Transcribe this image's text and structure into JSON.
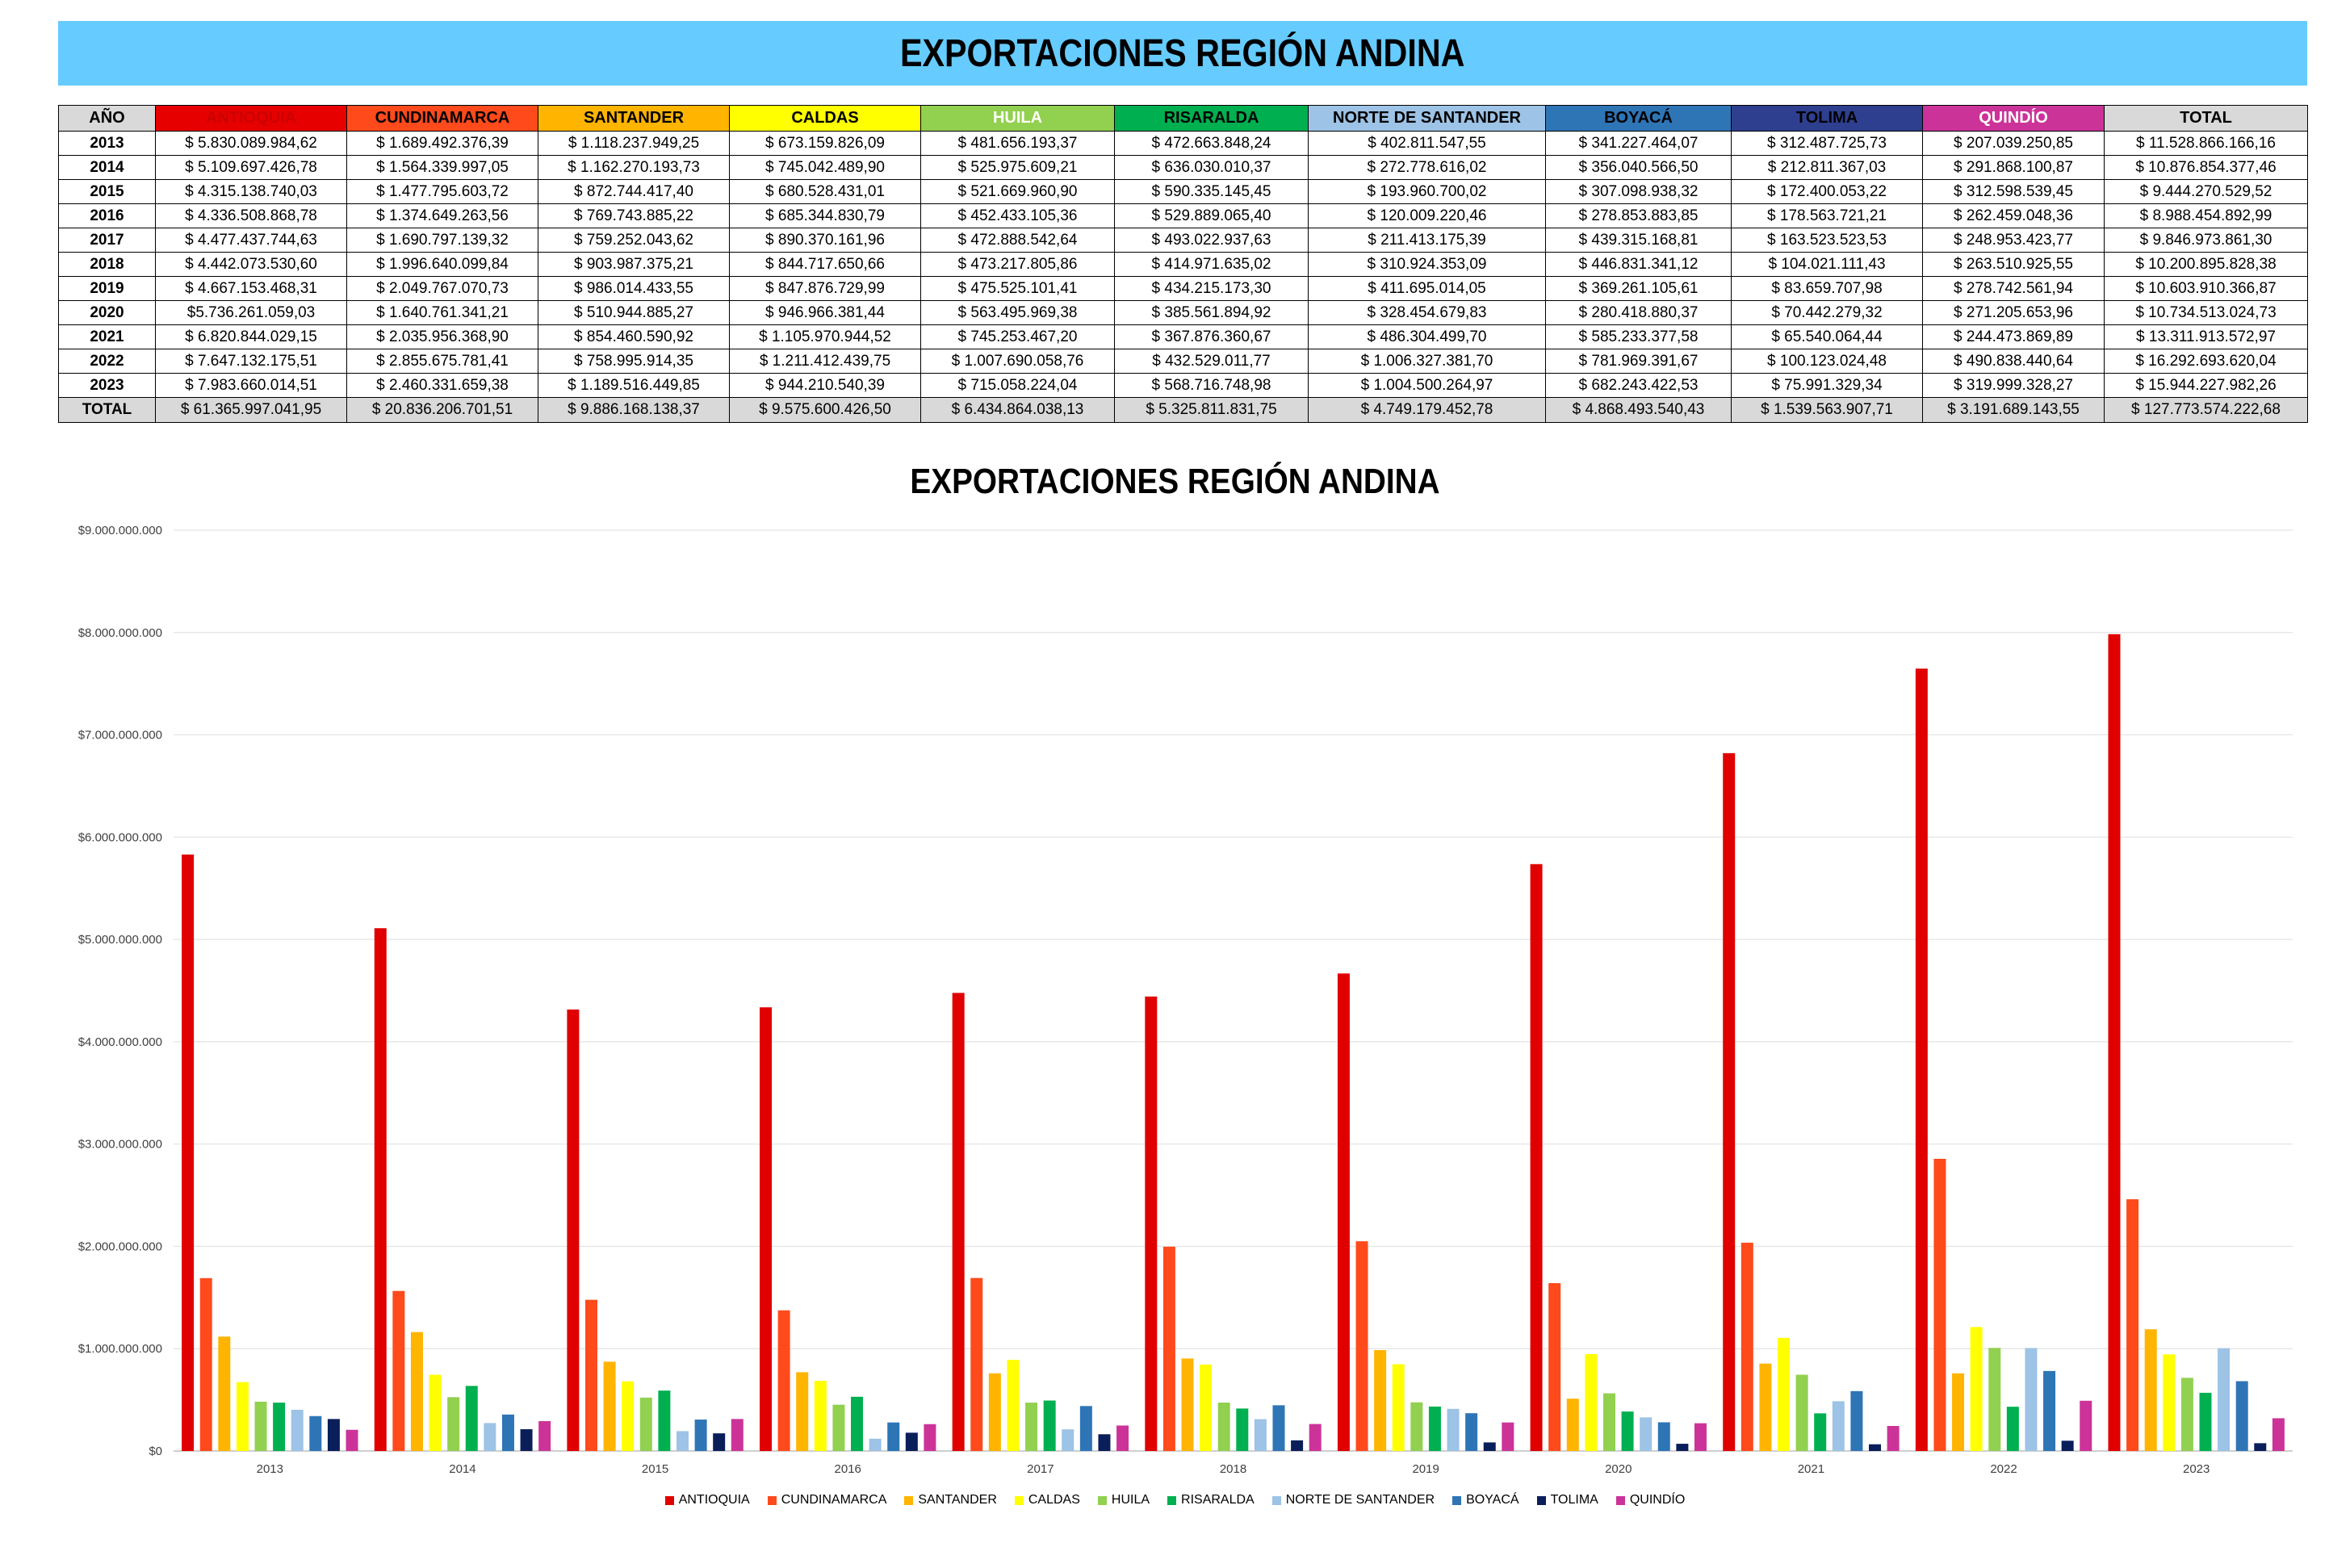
{
  "page_title": "EXPORTACIONES REGIÓN ANDINA",
  "table": {
    "year_header": "AÑO",
    "columns": [
      {
        "label": "ANTIOQUIA",
        "color": "#E60000",
        "text_color": "#CC0000"
      },
      {
        "label": "CUNDINAMARCA",
        "color": "#FF4A1C",
        "text_color": "#000000"
      },
      {
        "label": "SANTANDER",
        "color": "#FFB400",
        "text_color": "#000000"
      },
      {
        "label": "CALDAS",
        "color": "#FFFF00",
        "text_color": "#000000"
      },
      {
        "label": "HUILA",
        "color": "#92D050",
        "text_color": "#FFFFFF"
      },
      {
        "label": "RISARALDA",
        "color": "#00B050",
        "text_color": "#000000"
      },
      {
        "label": "NORTE DE SANTANDER",
        "color": "#9DC3E6",
        "text_color": "#000000"
      },
      {
        "label": "BOYACÁ",
        "color": "#2E75B6",
        "text_color": "#000000"
      },
      {
        "label": "TOLIMA",
        "color": "#2F3F8F",
        "text_color": "#000000"
      },
      {
        "label": "QUINDÍO",
        "color": "#CC3399",
        "text_color": "#FFFFFF"
      },
      {
        "label": "TOTAL",
        "color": "#D9D9D9",
        "text_color": "#000000"
      }
    ],
    "rows": [
      {
        "year": "2013",
        "cells": [
          "$ 5.830.089.984,62",
          "$ 1.689.492.376,39",
          "$ 1.118.237.949,25",
          "$ 673.159.826,09",
          "$ 481.656.193,37",
          "$ 472.663.848,24",
          "$ 402.811.547,55",
          "$ 341.227.464,07",
          "$ 312.487.725,73",
          "$ 207.039.250,85",
          "$ 11.528.866.166,16"
        ]
      },
      {
        "year": "2014",
        "cells": [
          "$ 5.109.697.426,78",
          "$ 1.564.339.997,05",
          "$ 1.162.270.193,73",
          "$ 745.042.489,90",
          "$ 525.975.609,21",
          "$ 636.030.010,37",
          "$ 272.778.616,02",
          "$ 356.040.566,50",
          "$ 212.811.367,03",
          "$ 291.868.100,87",
          "$ 10.876.854.377,46"
        ]
      },
      {
        "year": "2015",
        "cells": [
          "$ 4.315.138.740,03",
          "$ 1.477.795.603,72",
          "$ 872.744.417,40",
          "$ 680.528.431,01",
          "$ 521.669.960,90",
          "$ 590.335.145,45",
          "$ 193.960.700,02",
          "$ 307.098.938,32",
          "$ 172.400.053,22",
          "$ 312.598.539,45",
          "$ 9.444.270.529,52"
        ]
      },
      {
        "year": "2016",
        "cells": [
          "$ 4.336.508.868,78",
          "$ 1.374.649.263,56",
          "$ 769.743.885,22",
          "$ 685.344.830,79",
          "$ 452.433.105,36",
          "$ 529.889.065,40",
          "$ 120.009.220,46",
          "$ 278.853.883,85",
          "$ 178.563.721,21",
          "$ 262.459.048,36",
          "$ 8.988.454.892,99"
        ]
      },
      {
        "year": "2017",
        "cells": [
          "$ 4.477.437.744,63",
          "$ 1.690.797.139,32",
          "$ 759.252.043,62",
          "$ 890.370.161,96",
          "$ 472.888.542,64",
          "$ 493.022.937,63",
          "$ 211.413.175,39",
          "$ 439.315.168,81",
          "$ 163.523.523,53",
          "$ 248.953.423,77",
          "$ 9.846.973.861,30"
        ]
      },
      {
        "year": "2018",
        "cells": [
          "$ 4.442.073.530,60",
          "$ 1.996.640.099,84",
          "$ 903.987.375,21",
          "$ 844.717.650,66",
          "$ 473.217.805,86",
          "$ 414.971.635,02",
          "$ 310.924.353,09",
          "$ 446.831.341,12",
          "$ 104.021.111,43",
          "$ 263.510.925,55",
          "$ 10.200.895.828,38"
        ]
      },
      {
        "year": "2019",
        "cells": [
          "$ 4.667.153.468,31",
          "$ 2.049.767.070,73",
          "$ 986.014.433,55",
          "$ 847.876.729,99",
          "$ 475.525.101,41",
          "$ 434.215.173,30",
          "$ 411.695.014,05",
          "$ 369.261.105,61",
          "$ 83.659.707,98",
          "$ 278.742.561,94",
          "$ 10.603.910.366,87"
        ]
      },
      {
        "year": "2020",
        "cells": [
          "$5.736.261.059,03",
          "$ 1.640.761.341,21",
          "$ 510.944.885,27",
          "$ 946.966.381,44",
          "$ 563.495.969,38",
          "$ 385.561.894,92",
          "$ 328.454.679,83",
          "$ 280.418.880,37",
          "$ 70.442.279,32",
          "$ 271.205.653,96",
          "$ 10.734.513.024,73"
        ]
      },
      {
        "year": "2021",
        "cells": [
          "$ 6.820.844.029,15",
          "$ 2.035.956.368,90",
          "$ 854.460.590,92",
          "$ 1.105.970.944,52",
          "$ 745.253.467,20",
          "$ 367.876.360,67",
          "$ 486.304.499,70",
          "$ 585.233.377,58",
          "$ 65.540.064,44",
          "$ 244.473.869,89",
          "$ 13.311.913.572,97"
        ]
      },
      {
        "year": "2022",
        "cells": [
          "$ 7.647.132.175,51",
          "$ 2.855.675.781,41",
          "$ 758.995.914,35",
          "$ 1.211.412.439,75",
          "$ 1.007.690.058,76",
          "$ 432.529.011,77",
          "$ 1.006.327.381,70",
          "$ 781.969.391,67",
          "$ 100.123.024,48",
          "$ 490.838.440,64",
          "$ 16.292.693.620,04"
        ]
      },
      {
        "year": "2023",
        "cells": [
          "$ 7.983.660.014,51",
          "$ 2.460.331.659,38",
          "$ 1.189.516.449,85",
          "$ 944.210.540,39",
          "$ 715.058.224,04",
          "$ 568.716.748,98",
          "$ 1.004.500.264,97",
          "$ 682.243.422,53",
          "$ 75.991.329,34",
          "$ 319.999.328,27",
          "$ 15.944.227.982,26"
        ]
      }
    ],
    "total_row": {
      "year": "TOTAL",
      "cells": [
        "$ 61.365.997.041,95",
        "$ 20.836.206.701,51",
        "$ 9.886.168.138,37",
        "$ 9.575.600.426,50",
        "$ 6.434.864.038,13",
        "$ 5.325.811.831,75",
        "$ 4.749.179.452,78",
        "$ 4.868.493.540,43",
        "$ 1.539.563.907,71",
        "$ 3.191.689.143,55",
        "$ 127.773.574.222,68"
      ]
    }
  },
  "chart_data": {
    "type": "bar",
    "title": "EXPORTACIONES REGIÓN ANDINA",
    "xlabel": "",
    "ylabel": "",
    "ylim": [
      0,
      9000000000
    ],
    "y_ticks": [
      0,
      1000000000,
      2000000000,
      3000000000,
      4000000000,
      5000000000,
      6000000000,
      7000000000,
      8000000000,
      9000000000
    ],
    "y_tick_labels": [
      "$0",
      "$1.000.000.000",
      "$2.000.000.000",
      "$3.000.000.000",
      "$4.000.000.000",
      "$5.000.000.000",
      "$6.000.000.000",
      "$7.000.000.000",
      "$8.000.000.000",
      "$9.000.000.000"
    ],
    "grid": true,
    "legend_position": "bottom",
    "categories": [
      "2013",
      "2014",
      "2015",
      "2016",
      "2017",
      "2018",
      "2019",
      "2020",
      "2021",
      "2022",
      "2023"
    ],
    "series": [
      {
        "name": "ANTIOQUIA",
        "color": "#E00000",
        "values": [
          5830089984.62,
          5109697426.78,
          4315138740.03,
          4336508868.78,
          4477437744.63,
          4442073530.6,
          4667153468.31,
          5736261059.03,
          6820844029.15,
          7647132175.51,
          7983660014.51
        ]
      },
      {
        "name": "CUNDINAMARCA",
        "color": "#FF4A1C",
        "values": [
          1689492376.39,
          1564339997.05,
          1477795603.72,
          1374649263.56,
          1690797139.32,
          1996640099.84,
          2049767070.73,
          1640761341.21,
          2035956368.9,
          2855675781.41,
          2460331659.38
        ]
      },
      {
        "name": "SANTANDER",
        "color": "#FFB400",
        "values": [
          1118237949.25,
          1162270193.73,
          872744417.4,
          769743885.22,
          759252043.62,
          903987375.21,
          986014433.55,
          510944885.27,
          854460590.92,
          758995914.35,
          1189516449.85
        ]
      },
      {
        "name": "CALDAS",
        "color": "#FFFF00",
        "values": [
          673159826.09,
          745042489.9,
          680528431.01,
          685344830.79,
          890370161.96,
          844717650.66,
          847876729.99,
          946966381.44,
          1105970944.52,
          1211412439.75,
          944210540.39
        ]
      },
      {
        "name": "HUILA",
        "color": "#92D050",
        "values": [
          481656193.37,
          525975609.21,
          521669960.9,
          452433105.36,
          472888542.64,
          473217805.86,
          475525101.41,
          563495969.38,
          745253467.2,
          1007690058.76,
          715058224.04
        ]
      },
      {
        "name": "RISARALDA",
        "color": "#00B050",
        "values": [
          472663848.24,
          636030010.37,
          590335145.45,
          529889065.4,
          493022937.63,
          414971635.02,
          434215173.3,
          385561894.92,
          367876360.67,
          432529011.77,
          568716748.98
        ]
      },
      {
        "name": "NORTE DE SANTANDER",
        "color": "#9DC3E6",
        "values": [
          402811547.55,
          272778616.02,
          193960700.02,
          120009220.46,
          211413175.39,
          310924353.09,
          411695014.05,
          328454679.83,
          486304499.7,
          1006327381.7,
          1004500264.97
        ]
      },
      {
        "name": "BOYACÁ",
        "color": "#2E75B6",
        "values": [
          341227464.07,
          356040566.5,
          307098938.32,
          278853883.85,
          439315168.81,
          446831341.12,
          369261105.61,
          280418880.37,
          585233377.58,
          781969391.67,
          682243422.53
        ]
      },
      {
        "name": "TOLIMA",
        "color": "#0A1E5A",
        "values": [
          312487725.73,
          212811367.03,
          172400053.22,
          178563721.21,
          163523523.53,
          104021111.43,
          83659707.98,
          70442279.32,
          65540064.44,
          100123024.48,
          75991329.34
        ]
      },
      {
        "name": "QUINDÍO",
        "color": "#CC3399",
        "values": [
          207039250.85,
          291868100.87,
          312598539.45,
          262459048.36,
          248953423.77,
          263510925.55,
          278742561.94,
          271205653.96,
          244473869.89,
          490838440.64,
          319999328.27
        ]
      }
    ]
  }
}
